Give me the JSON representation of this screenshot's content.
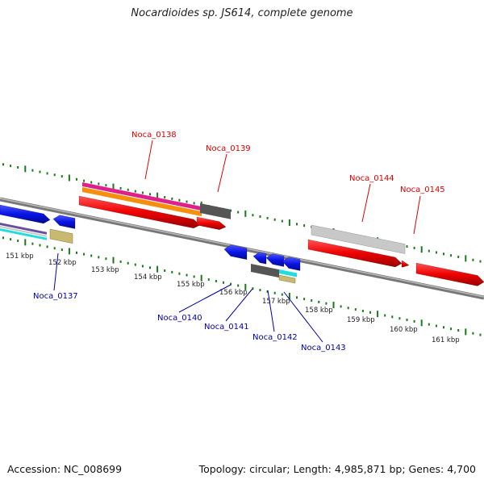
{
  "header": {
    "title": "Nocardioides sp. JS614, complete genome"
  },
  "footer": {
    "accession": "Accession: NC_008699",
    "topology": "Topology: circular; Length: 4,985,871 bp; Genes: 4,700"
  },
  "scale": {
    "ticks": [
      "151 kbp",
      "152 kbp",
      "153 kbp",
      "154 kbp",
      "155 kbp",
      "156 kbp",
      "157 kbp",
      "158 kbp",
      "159 kbp",
      "160 kbp",
      "161 kbp"
    ]
  },
  "genes": {
    "forward": [
      "Noca_0138",
      "Noca_0139",
      "Noca_0144",
      "Noca_0145"
    ],
    "reverse": [
      "Noca_0137",
      "Noca_0140",
      "Noca_0141",
      "Noca_0142",
      "Noca_0143"
    ]
  },
  "colors": {
    "forward_label": "#dd0000",
    "reverse_label": "#0000aa",
    "cds_forward": "#ee0000",
    "cds_reverse": "#0a14e6",
    "backbone": "#888888",
    "tick": "#1a7a1a",
    "trna": "#e0208a",
    "gene_track": "#f5900f",
    "feature_gray": "#555555",
    "feature_light": "#c8c8c8",
    "feature_cyan": "#22dddd",
    "feature_khaki": "#c8b870",
    "feature_purple": "#6a4fa0"
  }
}
